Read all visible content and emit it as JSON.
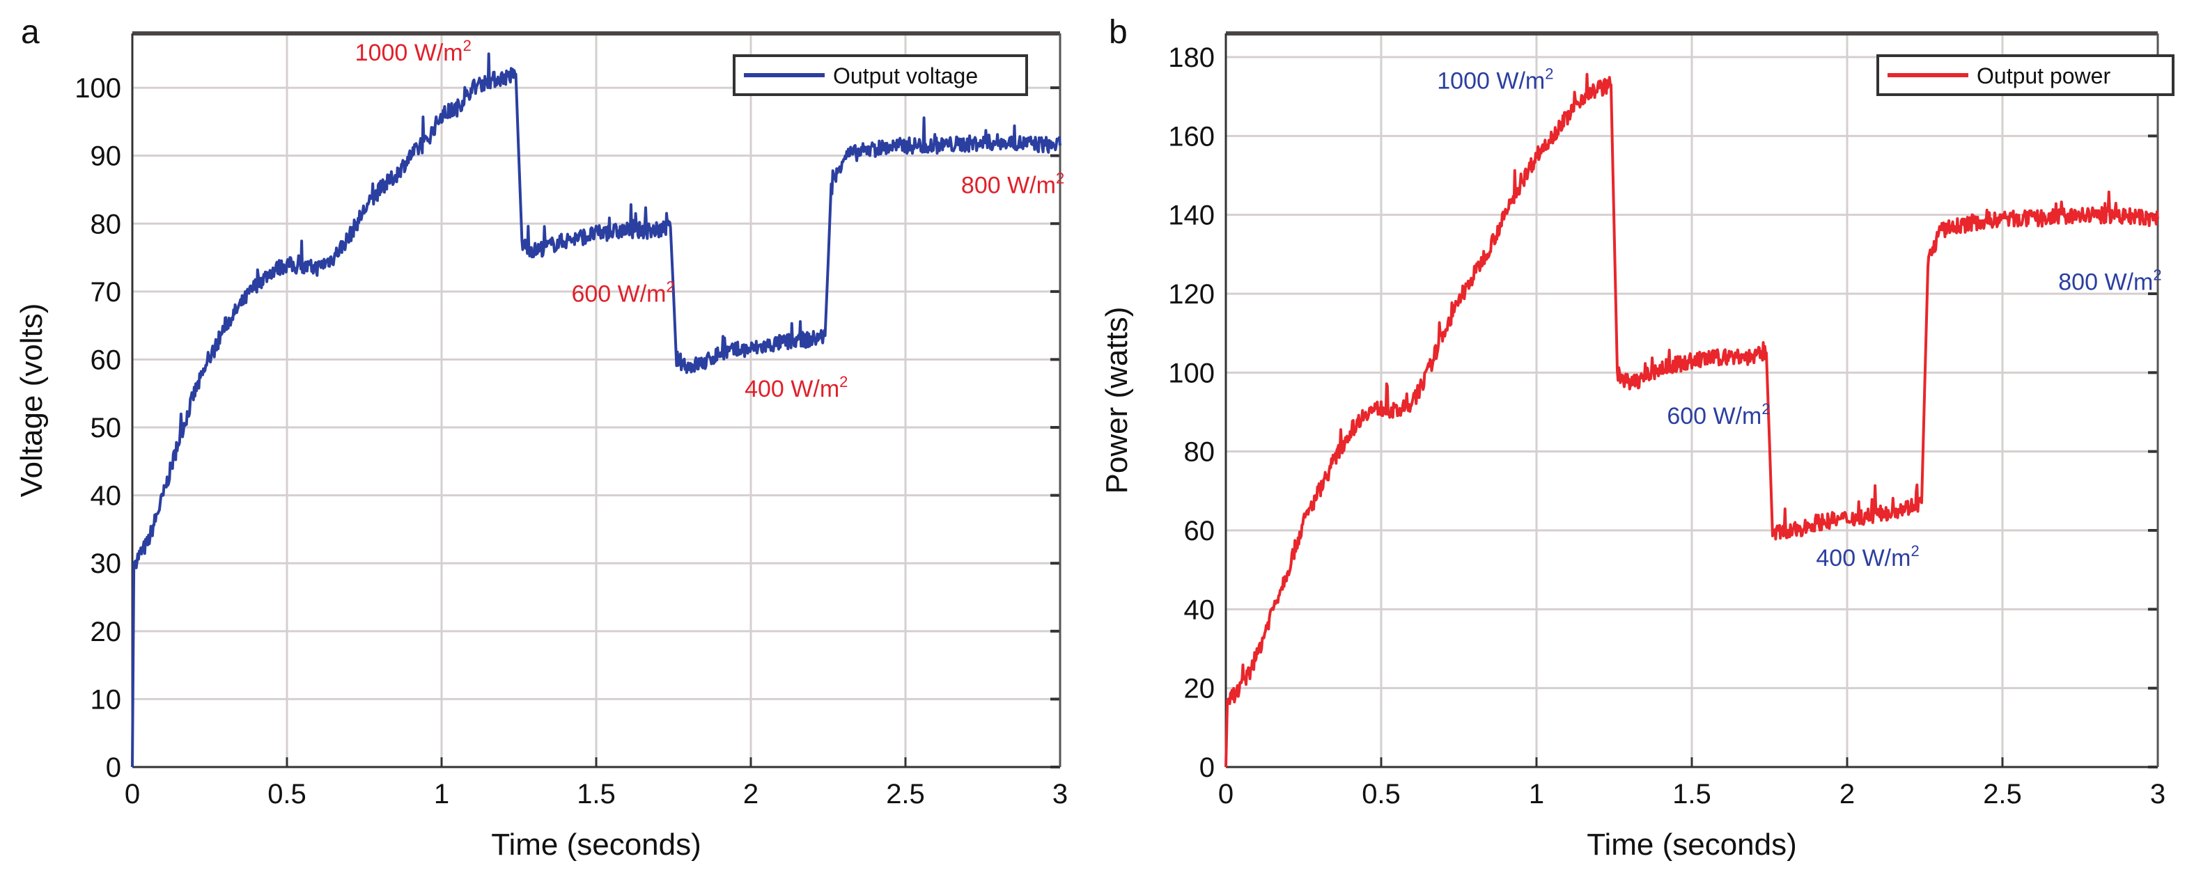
{
  "chart_data": [
    {
      "panel_label": "a",
      "type": "line",
      "xlabel": "Time (seconds)",
      "ylabel": "Voltage (volts)",
      "xlim": [
        0,
        3
      ],
      "ylim": [
        0,
        108
      ],
      "xticks": [
        "0",
        "0.5",
        "1",
        "1.5",
        "2",
        "2.5",
        "3"
      ],
      "xtick_values": [
        0,
        0.5,
        1,
        1.5,
        2,
        2.5,
        3
      ],
      "yticks": [
        "0",
        "10",
        "20",
        "30",
        "40",
        "50",
        "60",
        "70",
        "80",
        "90",
        "100"
      ],
      "ytick_values": [
        0,
        10,
        20,
        30,
        40,
        50,
        60,
        70,
        80,
        90,
        100
      ],
      "grid": true,
      "legend": {
        "label": "Output voltage",
        "placement": "top-right"
      },
      "series": [
        {
          "name": "Output voltage",
          "color": "#2b3fa0",
          "x": [
            0,
            0.005,
            0.05,
            0.1,
            0.15,
            0.2,
            0.25,
            0.3,
            0.35,
            0.4,
            0.45,
            0.5,
            0.55,
            0.6,
            0.65,
            0.7,
            0.75,
            0.8,
            0.85,
            0.9,
            0.95,
            1.0,
            1.05,
            1.1,
            1.15,
            1.2,
            1.24,
            1.26,
            1.3,
            1.4,
            1.5,
            1.6,
            1.7,
            1.74,
            1.76,
            1.8,
            1.85,
            1.9,
            2.0,
            2.1,
            2.2,
            2.24,
            2.26,
            2.3,
            2.4,
            2.5,
            2.6,
            2.8,
            3.0
          ],
          "y": [
            0,
            30,
            33,
            40,
            48,
            55,
            60,
            65,
            68,
            71,
            73,
            74,
            73.5,
            73.5,
            75,
            78,
            82,
            85,
            87,
            90,
            92,
            96,
            97,
            100,
            101,
            101.5,
            102,
            77,
            76,
            77.5,
            78.5,
            79,
            79,
            79.5,
            60,
            59,
            59.5,
            61,
            61.5,
            62.5,
            63,
            63.5,
            85,
            90,
            91,
            91.5,
            91.5,
            92,
            91.5
          ]
        }
      ],
      "annotations": [
        {
          "text": "1000 W/m",
          "sup": "2",
          "x": 0.72,
          "y": 104,
          "color": "#e0202a"
        },
        {
          "text": "600 W/m",
          "sup": "2",
          "x": 1.42,
          "y": 68.5,
          "color": "#e0202a"
        },
        {
          "text": "400 W/m",
          "sup": "2",
          "x": 1.98,
          "y": 54.5,
          "color": "#e0202a"
        },
        {
          "text": "800 W/m",
          "sup": "2",
          "x": 2.68,
          "y": 84.5,
          "color": "#e0202a"
        }
      ]
    },
    {
      "panel_label": "b",
      "type": "line",
      "xlabel": "Time (seconds)",
      "ylabel": "Power (watts)",
      "xlim": [
        0,
        3
      ],
      "ylim": [
        0,
        186
      ],
      "xticks": [
        "0",
        "0.5",
        "1",
        "1.5",
        "2",
        "2.5",
        "3"
      ],
      "xtick_values": [
        0,
        0.5,
        1,
        1.5,
        2,
        2.5,
        3
      ],
      "yticks": [
        "0",
        "20",
        "40",
        "60",
        "80",
        "100",
        "120",
        "140",
        "160",
        "180"
      ],
      "ytick_values": [
        0,
        20,
        40,
        60,
        80,
        100,
        120,
        140,
        160,
        180
      ],
      "grid": true,
      "legend": {
        "label": "Output power",
        "placement": "top-right"
      },
      "series": [
        {
          "name": "Output power",
          "color": "#e8262b",
          "x": [
            0,
            0.005,
            0.05,
            0.1,
            0.15,
            0.2,
            0.25,
            0.3,
            0.35,
            0.4,
            0.45,
            0.5,
            0.55,
            0.6,
            0.65,
            0.7,
            0.75,
            0.8,
            0.85,
            0.9,
            0.95,
            1.0,
            1.05,
            1.1,
            1.15,
            1.2,
            1.24,
            1.26,
            1.3,
            1.4,
            1.5,
            1.6,
            1.7,
            1.74,
            1.76,
            1.8,
            1.9,
            2.0,
            2.1,
            2.2,
            2.24,
            2.26,
            2.3,
            2.4,
            2.5,
            2.6,
            2.8,
            3.0
          ],
          "y": [
            0,
            17,
            20,
            28,
            40,
            50,
            62,
            70,
            78,
            85,
            90,
            91,
            90,
            92,
            100,
            110,
            118,
            125,
            132,
            140,
            148,
            155,
            160,
            165,
            170,
            172,
            173,
            100,
            97,
            101,
            103,
            104,
            104,
            105,
            60,
            59,
            62,
            63,
            64,
            66,
            67,
            128,
            136,
            138,
            139,
            139,
            140,
            139
          ]
        }
      ],
      "annotations": [
        {
          "text": "1000 W/m",
          "sup": "2",
          "x": 0.68,
          "y": 172,
          "color": "#2b3fa0"
        },
        {
          "text": "600 W/m",
          "sup": "2",
          "x": 1.42,
          "y": 87,
          "color": "#2b3fa0"
        },
        {
          "text": "400 W/m",
          "sup": "2",
          "x": 1.9,
          "y": 51,
          "color": "#2b3fa0"
        },
        {
          "text": "800 W/m",
          "sup": "2",
          "x": 2.68,
          "y": 121,
          "color": "#2b3fa0"
        }
      ]
    }
  ]
}
